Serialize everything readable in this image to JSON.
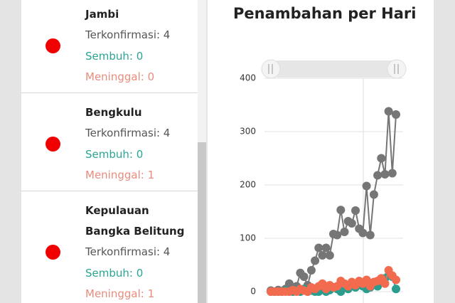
{
  "provinces": [
    {
      "name": "Jambi",
      "confirmed": "Terkonfirmasi: 4",
      "recovered": "Sembuh: 0",
      "deaths": "Meninggal: 0"
    },
    {
      "name": "Bengkulu",
      "confirmed": "Terkonfirmasi: 4",
      "recovered": "Sembuh: 0",
      "deaths": "Meninggal: 1"
    },
    {
      "name": "Kepulauan Bangka Belitung",
      "confirmed": "Terkonfirmasi: 4",
      "recovered": "Sembuh: 0",
      "deaths": "Meninggal: 1"
    }
  ],
  "chart_data": {
    "type": "line",
    "title": "Penambahan per Hari",
    "categories": [
      null,
      null,
      null,
      null,
      null,
      null,
      null,
      null,
      null,
      null,
      null,
      null,
      null,
      null,
      null,
      null,
      null,
      null,
      null,
      null,
      null,
      null,
      null,
      null,
      null,
      null,
      null,
      null,
      null,
      null,
      null,
      null,
      null,
      null,
      null
    ],
    "series": [
      {
        "color": "#767676",
        "values": [
          2,
          0,
          3,
          1,
          5,
          15,
          5,
          10,
          35,
          28,
          12,
          40,
          58,
          82,
          68,
          82,
          68,
          108,
          106,
          153,
          112,
          132,
          128,
          152,
          118,
          110,
          198,
          106,
          182,
          218,
          250,
          220,
          338,
          222,
          332
        ]
      },
      {
        "color": "#2a9d8f",
        "values": [
          0,
          0,
          0,
          0,
          2,
          0,
          0,
          3,
          0,
          5,
          0,
          2,
          0,
          0,
          5,
          0,
          3,
          8,
          5,
          0,
          10,
          5,
          12,
          8,
          15,
          10,
          5,
          8,
          15,
          10,
          20,
          25,
          30,
          28,
          5
        ]
      },
      {
        "color": "#f26b4f",
        "values": [
          0,
          0,
          0,
          0,
          0,
          0,
          3,
          0,
          5,
          2,
          0,
          8,
          5,
          10,
          15,
          5,
          12,
          8,
          10,
          20,
          15,
          10,
          18,
          12,
          20,
          15,
          22,
          10,
          18,
          20,
          25,
          15,
          40,
          30,
          22
        ]
      }
    ],
    "ylim": [
      0,
      400
    ],
    "yticks": [
      0,
      100,
      200,
      300,
      400
    ],
    "grid": true
  }
}
